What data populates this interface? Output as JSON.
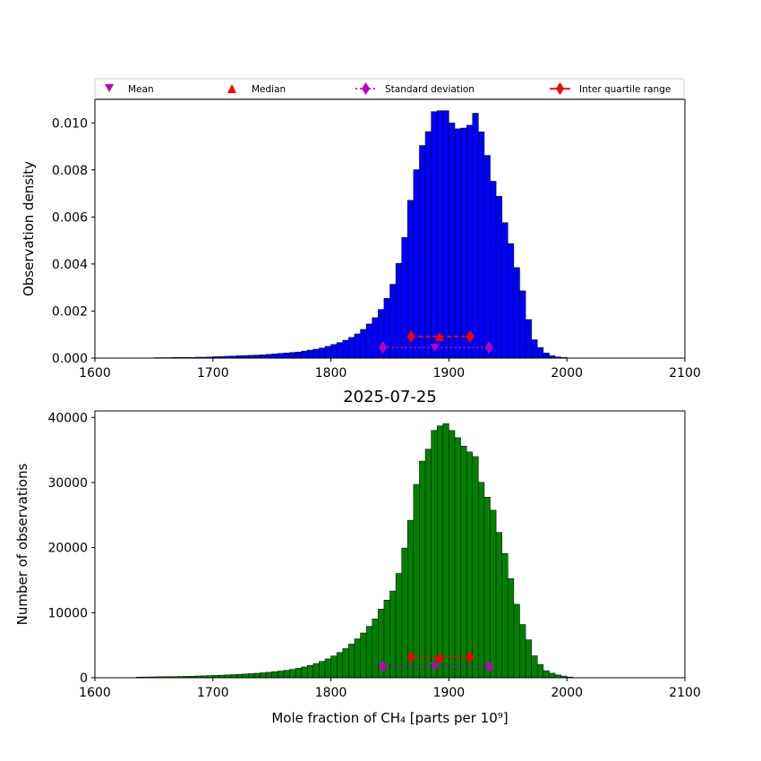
{
  "legend": {
    "items": [
      {
        "label": "Mean",
        "color": "#bf00bf",
        "marker": "triangle-down"
      },
      {
        "label": "Median",
        "color": "#ff0000",
        "marker": "triangle-up"
      },
      {
        "label": "Standard deviation",
        "color": "#bf00bf",
        "marker": "diamond-dotted-line"
      },
      {
        "label": "Inter quartile range",
        "color": "#ff0000",
        "marker": "diamond-dashed-line"
      }
    ]
  },
  "chart_data": [
    {
      "type": "bar",
      "title": "",
      "xlabel": "",
      "ylabel": "Observation density",
      "xlim": [
        1600,
        2100
      ],
      "ylim": [
        0,
        0.011
      ],
      "xticks": [
        1600,
        1700,
        1800,
        1900,
        2000,
        2100
      ],
      "yticks": [
        0.0,
        0.002,
        0.004,
        0.006,
        0.008,
        0.01
      ],
      "ytick_labels": [
        "0.000",
        "0.002",
        "0.004",
        "0.006",
        "0.008",
        "0.010"
      ],
      "bar_color": "#0000ff",
      "bin_width": 5,
      "bin_starts": [
        1650,
        1655,
        1660,
        1665,
        1670,
        1675,
        1680,
        1685,
        1690,
        1695,
        1700,
        1705,
        1710,
        1715,
        1720,
        1725,
        1730,
        1735,
        1740,
        1745,
        1750,
        1755,
        1760,
        1765,
        1770,
        1775,
        1780,
        1785,
        1790,
        1795,
        1800,
        1805,
        1810,
        1815,
        1820,
        1825,
        1830,
        1835,
        1840,
        1845,
        1850,
        1855,
        1860,
        1865,
        1870,
        1875,
        1880,
        1885,
        1890,
        1895,
        1900,
        1905,
        1910,
        1915,
        1920,
        1925,
        1930,
        1935,
        1940,
        1945,
        1950,
        1955,
        1960,
        1965,
        1970,
        1975,
        1980,
        1985,
        1990,
        1995,
        2000
      ],
      "values": [
        2e-05,
        2e-05,
        2e-05,
        3e-05,
        3e-05,
        3e-05,
        3e-05,
        4e-05,
        4e-05,
        5e-05,
        6e-05,
        7e-05,
        8e-05,
        9e-05,
        0.0001,
        0.00011,
        0.00012,
        0.00013,
        0.00014,
        0.00016,
        0.00018,
        0.0002,
        0.00022,
        0.00024,
        0.00026,
        0.0003,
        0.00034,
        0.00038,
        0.00043,
        0.0005,
        0.00058,
        0.00066,
        0.00076,
        0.00088,
        0.00103,
        0.00122,
        0.00145,
        0.00172,
        0.00207,
        0.00254,
        0.00314,
        0.00403,
        0.00513,
        0.00671,
        0.00801,
        0.00904,
        0.00963,
        0.01048,
        0.01052,
        0.01052,
        0.01,
        0.00975,
        0.00978,
        0.0099,
        0.01041,
        0.00962,
        0.00862,
        0.00752,
        0.00688,
        0.00576,
        0.00487,
        0.00385,
        0.00286,
        0.00164,
        0.00078,
        0.00045,
        0.00022,
        0.0001,
        5e-05,
        3e-05,
        1e-05
      ],
      "stats": {
        "mean": {
          "x": 1888,
          "y": 0.00045
        },
        "median": {
          "x": 1892,
          "y": 0.00092
        },
        "std_range": [
          1844,
          1934
        ],
        "std_y": 0.00045,
        "iqr_range": [
          1868,
          1918
        ],
        "iqr_y": 0.00092
      }
    },
    {
      "type": "bar",
      "title": "2025-07-25",
      "xlabel": "Mole fraction of CH₄ [parts per 10⁹]",
      "ylabel": "Number of observations",
      "xlim": [
        1600,
        2100
      ],
      "ylim": [
        0,
        41000
      ],
      "xticks": [
        1600,
        1700,
        1800,
        1900,
        2000,
        2100
      ],
      "yticks": [
        0,
        10000,
        20000,
        30000,
        40000
      ],
      "ytick_labels": [
        "0",
        "10000",
        "20000",
        "30000",
        "40000"
      ],
      "bar_color": "#008000",
      "bin_width": 5,
      "bin_starts": [
        1635,
        1640,
        1645,
        1650,
        1655,
        1660,
        1665,
        1670,
        1675,
        1680,
        1685,
        1690,
        1695,
        1700,
        1705,
        1710,
        1715,
        1720,
        1725,
        1730,
        1735,
        1740,
        1745,
        1750,
        1755,
        1760,
        1765,
        1770,
        1775,
        1780,
        1785,
        1790,
        1795,
        1800,
        1805,
        1810,
        1815,
        1820,
        1825,
        1830,
        1835,
        1840,
        1845,
        1850,
        1855,
        1860,
        1865,
        1870,
        1875,
        1880,
        1885,
        1890,
        1895,
        1900,
        1905,
        1910,
        1915,
        1920,
        1925,
        1930,
        1935,
        1940,
        1945,
        1950,
        1955,
        1960,
        1965,
        1970,
        1975,
        1980,
        1985,
        1990,
        1995,
        2000
      ],
      "values": [
        100,
        120,
        130,
        150,
        160,
        170,
        180,
        200,
        220,
        240,
        270,
        300,
        330,
        360,
        400,
        440,
        480,
        530,
        580,
        630,
        690,
        760,
        840,
        930,
        1030,
        1150,
        1290,
        1460,
        1660,
        1900,
        2180,
        2510,
        2900,
        3350,
        3870,
        4480,
        5170,
        5980,
        6880,
        7900,
        9030,
        10550,
        11930,
        13340,
        16030,
        19940,
        24200,
        29710,
        33290,
        35130,
        38010,
        38710,
        39060,
        38000,
        36890,
        35600,
        34710,
        33990,
        30030,
        27760,
        25750,
        22340,
        19090,
        15230,
        11290,
        8180,
        5830,
        3370,
        2050,
        1080,
        700,
        430,
        260,
        110
      ],
      "stats": {
        "mean": {
          "x": 1888,
          "y": 1800
        },
        "median": {
          "x": 1892,
          "y": 3200
        },
        "std_range": [
          1844,
          1934
        ],
        "std_y": 1700,
        "iqr_range": [
          1868,
          1918
        ],
        "iqr_y": 3200
      }
    }
  ]
}
